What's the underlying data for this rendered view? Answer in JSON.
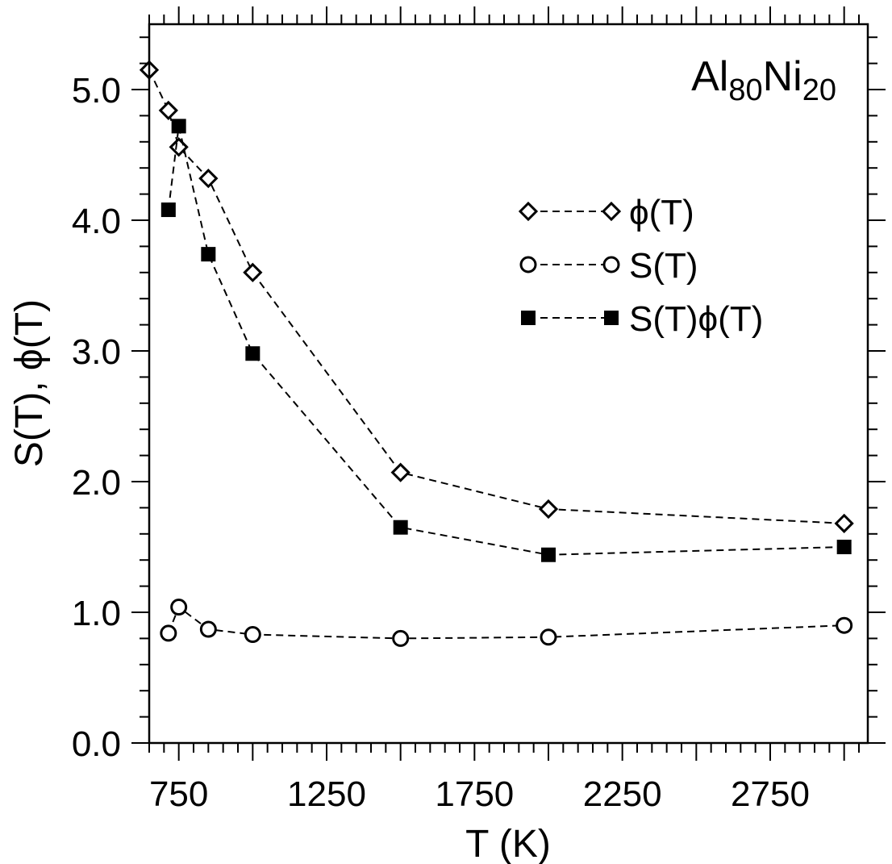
{
  "chart_data": {
    "type": "line",
    "xlabel": "T (K)",
    "ylabel": "S(T), ϕ(T)",
    "xlim": [
      650,
      3080
    ],
    "ylim": [
      0.0,
      5.5
    ],
    "x_ticks": [
      750,
      1250,
      1750,
      2250,
      2750
    ],
    "x_tick_labels": [
      "750",
      "1250",
      "1750",
      "2250",
      "2750"
    ],
    "y_ticks": [
      0.0,
      1.0,
      2.0,
      3.0,
      4.0,
      5.0
    ],
    "y_tick_labels": [
      "0.0",
      "1.0",
      "2.0",
      "3.0",
      "4.0",
      "5.0"
    ],
    "x_minor_step": 50,
    "y_minor_step": 0.2,
    "grid": false,
    "legend_position": "top-right",
    "annotation": {
      "base1": "Al",
      "sub1": "80",
      "base2": "Ni",
      "sub2": "20"
    },
    "series": [
      {
        "name": "ϕ(T)",
        "marker": "open-diamond",
        "line": "dashed",
        "x": [
          650,
          715,
          750,
          850,
          1000,
          1500,
          2000,
          3000
        ],
        "y": [
          5.15,
          4.84,
          4.56,
          4.32,
          3.6,
          2.07,
          1.79,
          1.68
        ]
      },
      {
        "name": "S(T)",
        "marker": "open-circle",
        "line": "dashed",
        "x": [
          715,
          750,
          850,
          1000,
          1500,
          2000,
          3000
        ],
        "y": [
          0.84,
          1.04,
          0.87,
          0.83,
          0.8,
          0.81,
          0.9
        ]
      },
      {
        "name": "S(T)ϕ(T)",
        "marker": "filled-square",
        "line": "dashed",
        "x": [
          715,
          750,
          850,
          1000,
          1500,
          2000,
          3000
        ],
        "y": [
          4.08,
          4.72,
          3.74,
          2.98,
          1.65,
          1.44,
          1.5
        ]
      }
    ]
  }
}
